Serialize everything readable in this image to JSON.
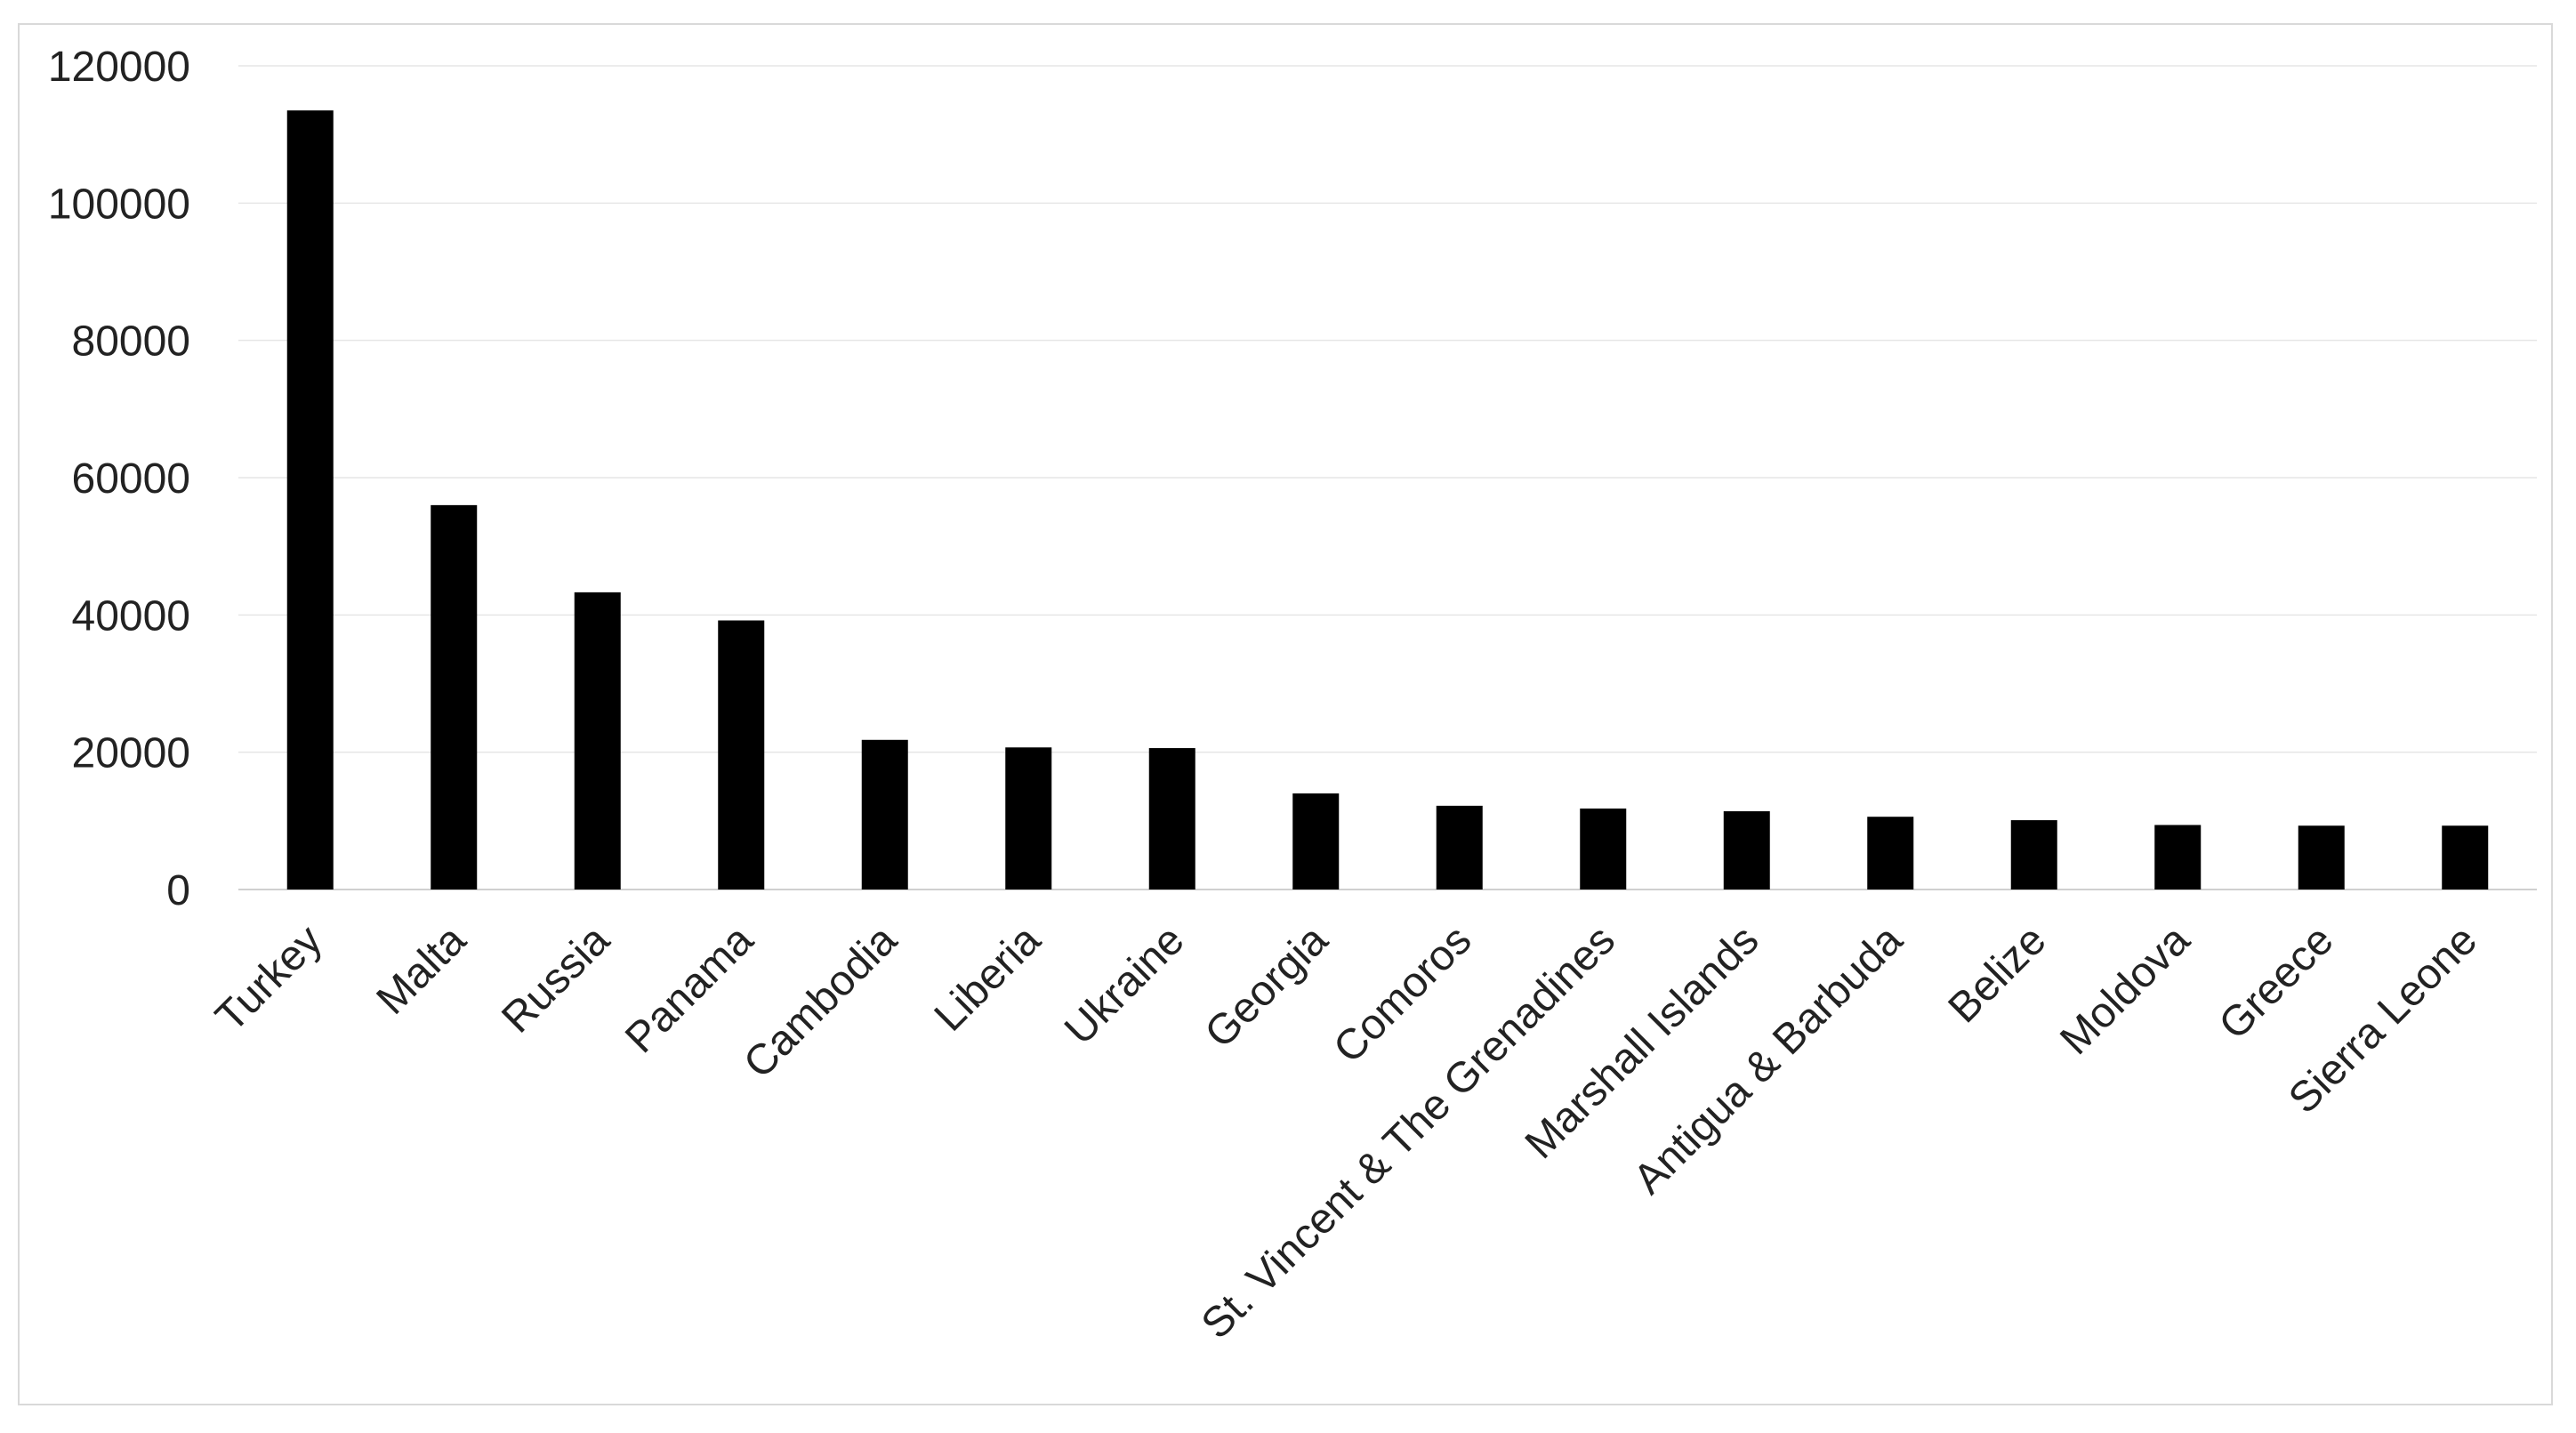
{
  "chart_data": {
    "type": "bar",
    "categories": [
      "Turkey",
      "Malta",
      "Russia",
      "Panama",
      "Cambodia",
      "Liberia",
      "Ukraine",
      "Georgia",
      "Comoros",
      "St. Vincent & The Grenadines",
      "Marshall Islands",
      "Antigua & Barbuda",
      "Belize",
      "Moldova",
      "Greece",
      "Sierra Leone"
    ],
    "values": [
      113500,
      56000,
      43300,
      39200,
      21800,
      20700,
      20600,
      14000,
      12200,
      11800,
      11400,
      10600,
      10100,
      9400,
      9300,
      9300
    ],
    "title": "",
    "xlabel": "",
    "ylabel": "",
    "ylim": [
      0,
      120000
    ],
    "yticks": [
      "0",
      "20000",
      "40000",
      "60000",
      "80000",
      "100000",
      "120000"
    ],
    "grid": true,
    "legend": "none",
    "bar_color": "#000000",
    "grid_color": "#e6e6e6"
  }
}
